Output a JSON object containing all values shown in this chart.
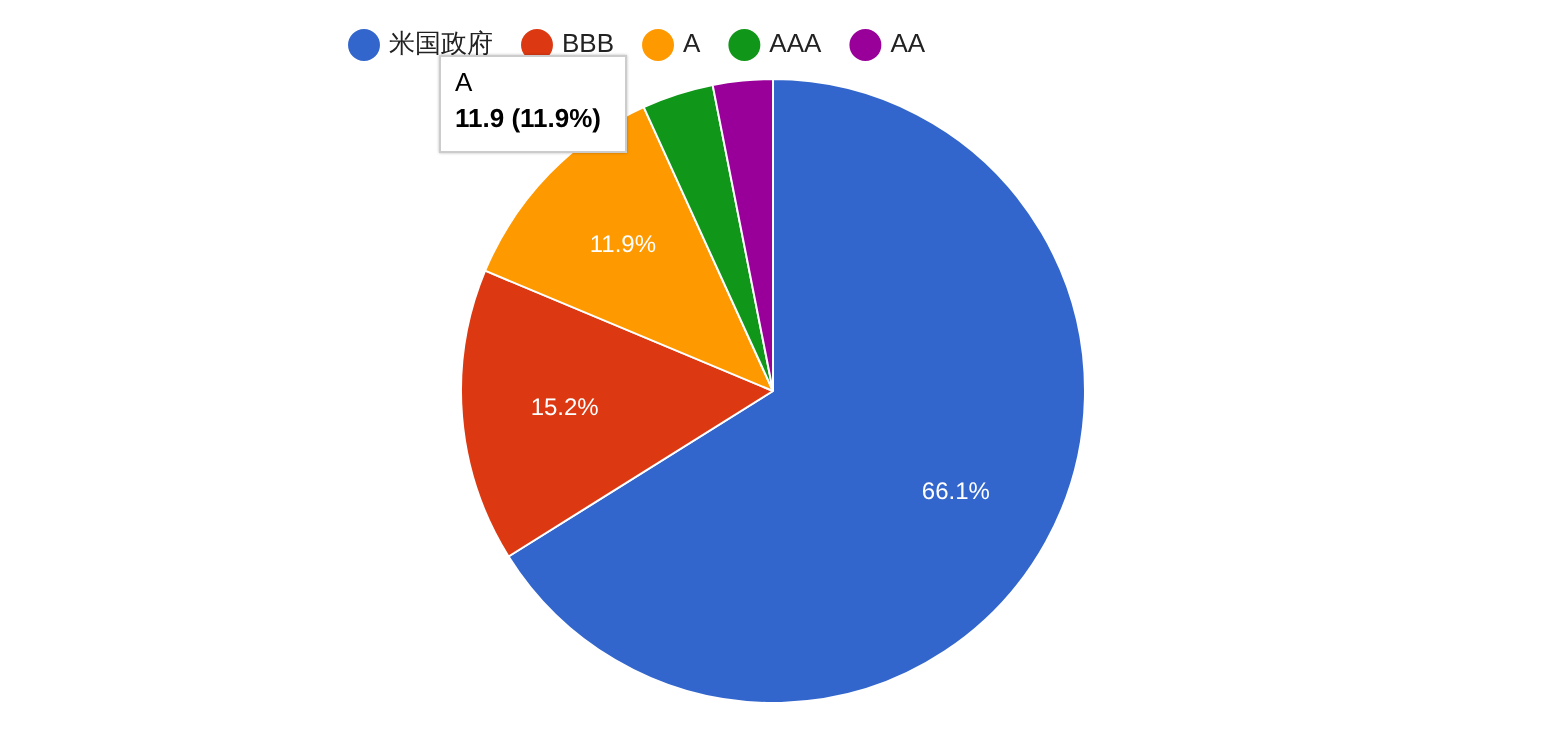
{
  "chart_data": {
    "type": "pie",
    "categories": [
      "米国政府",
      "BBB",
      "A",
      "AAA",
      "AA"
    ],
    "values": [
      66.1,
      15.2,
      11.9,
      3.7,
      3.1
    ],
    "colors": [
      "#3366cc",
      "#dc3912",
      "#ff9900",
      "#109618",
      "#990099"
    ],
    "value_labels": [
      "66.1%",
      "15.2%",
      "11.9%",
      null,
      null
    ],
    "legend": "top left",
    "annotations": [
      "A",
      "11.9 (11.9%)"
    ]
  }
}
